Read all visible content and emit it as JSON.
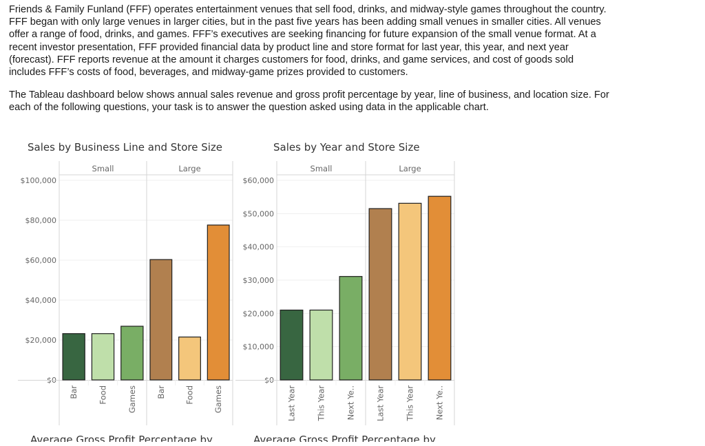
{
  "intro": {
    "paragraph1": [
      "Friends & Family Funland (FFF) operates entertainment venues that sell food, drinks, and midway-style games throughout the country.",
      "FFF began with only large venues in larger cities, but in the past five years has been adding small venues in smaller cities. All venues",
      "offer a range of food, drinks, and games. FFF’s executives are seeking financing for future expansion of the small venue format. At a",
      "recent investor presentation, FFF provided financial data by product line and store format for last year, this year, and next year",
      "(forecast). FFF reports revenue at the amount it charges customers for food, drinks, and game services, and cost of goods sold",
      "includes FFF’s costs of food, beverages, and midway-game prizes provided to customers."
    ],
    "paragraph2": [
      "The Tableau dashboard below shows annual sales revenue and gross profit percentage by year, line of business, and location size. For",
      "each of the following questions, your task is to answer the question asked using data in the applicable chart."
    ]
  },
  "colors": {
    "small_1": "#386641",
    "small_2": "#bfdfaa",
    "small_3": "#79ae65",
    "large_1": "#b1804f",
    "large_2": "#f4c67b",
    "large_3": "#e28e37"
  },
  "next_titles": [
    "Average Gross Profit Percentage by",
    "Average Gross Profit Percentage by"
  ],
  "chart_data": [
    {
      "type": "bar",
      "title": "Sales by Business Line and Store Size",
      "panels": [
        "Small",
        "Large"
      ],
      "categories": [
        "Bar",
        "Food",
        "Games"
      ],
      "series": [
        {
          "name": "Small",
          "values": [
            23200,
            23200,
            26900
          ]
        },
        {
          "name": "Large",
          "values": [
            60300,
            21500,
            77600
          ]
        }
      ],
      "xlabel": "",
      "ylabel": "",
      "ylim": [
        0,
        100000
      ],
      "yticks": [
        0,
        20000,
        40000,
        60000,
        80000,
        100000
      ],
      "ytick_labels": [
        "$0",
        "$20,000",
        "$40,000",
        "$60,000",
        "$80,000",
        "$100,000"
      ],
      "grid": true
    },
    {
      "type": "bar",
      "title": "Sales by Year and Store Size",
      "panels": [
        "Small",
        "Large"
      ],
      "categories": [
        "Last Year",
        "This Year",
        "Next Ye.."
      ],
      "series": [
        {
          "name": "Small",
          "values": [
            21000,
            21000,
            31100
          ]
        },
        {
          "name": "Large",
          "values": [
            51500,
            53100,
            55200
          ]
        }
      ],
      "xlabel": "",
      "ylabel": "",
      "ylim": [
        0,
        60000
      ],
      "yticks": [
        0,
        10000,
        20000,
        30000,
        40000,
        50000,
        60000
      ],
      "ytick_labels": [
        "$0",
        "$10,000",
        "$20,000",
        "$30,000",
        "$40,000",
        "$50,000",
        "$60,000"
      ],
      "grid": true
    }
  ]
}
